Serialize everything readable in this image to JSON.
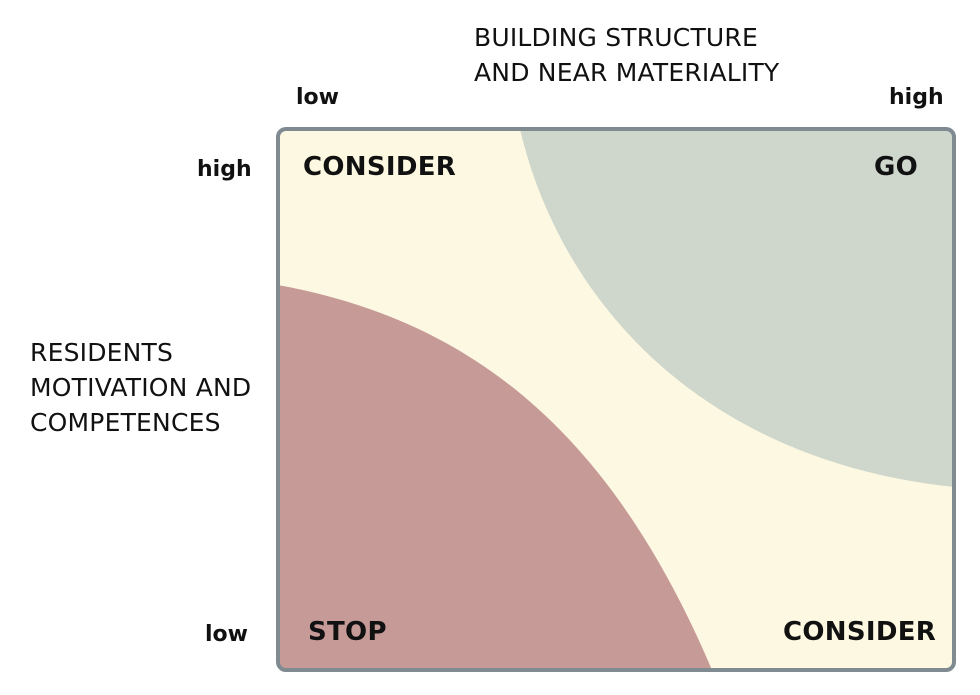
{
  "x_axis": {
    "title_lines": [
      "BUILDING STRUCTURE",
      "AND NEAR MATERIALITY"
    ],
    "low_label": "low",
    "high_label": "high"
  },
  "y_axis": {
    "title_lines": [
      "RESIDENTS",
      "MOTIVATION AND",
      "COMPETENCES"
    ],
    "high_label": "high",
    "low_label": "low"
  },
  "zones": {
    "top_left": "CONSIDER",
    "top_right": "GO",
    "bottom_left": "STOP",
    "bottom_right": "CONSIDER"
  },
  "colors": {
    "consider": "#fdf8e1",
    "go": "#cfd6cc",
    "stop": "#c69a97",
    "frame": "#7f8a91"
  }
}
